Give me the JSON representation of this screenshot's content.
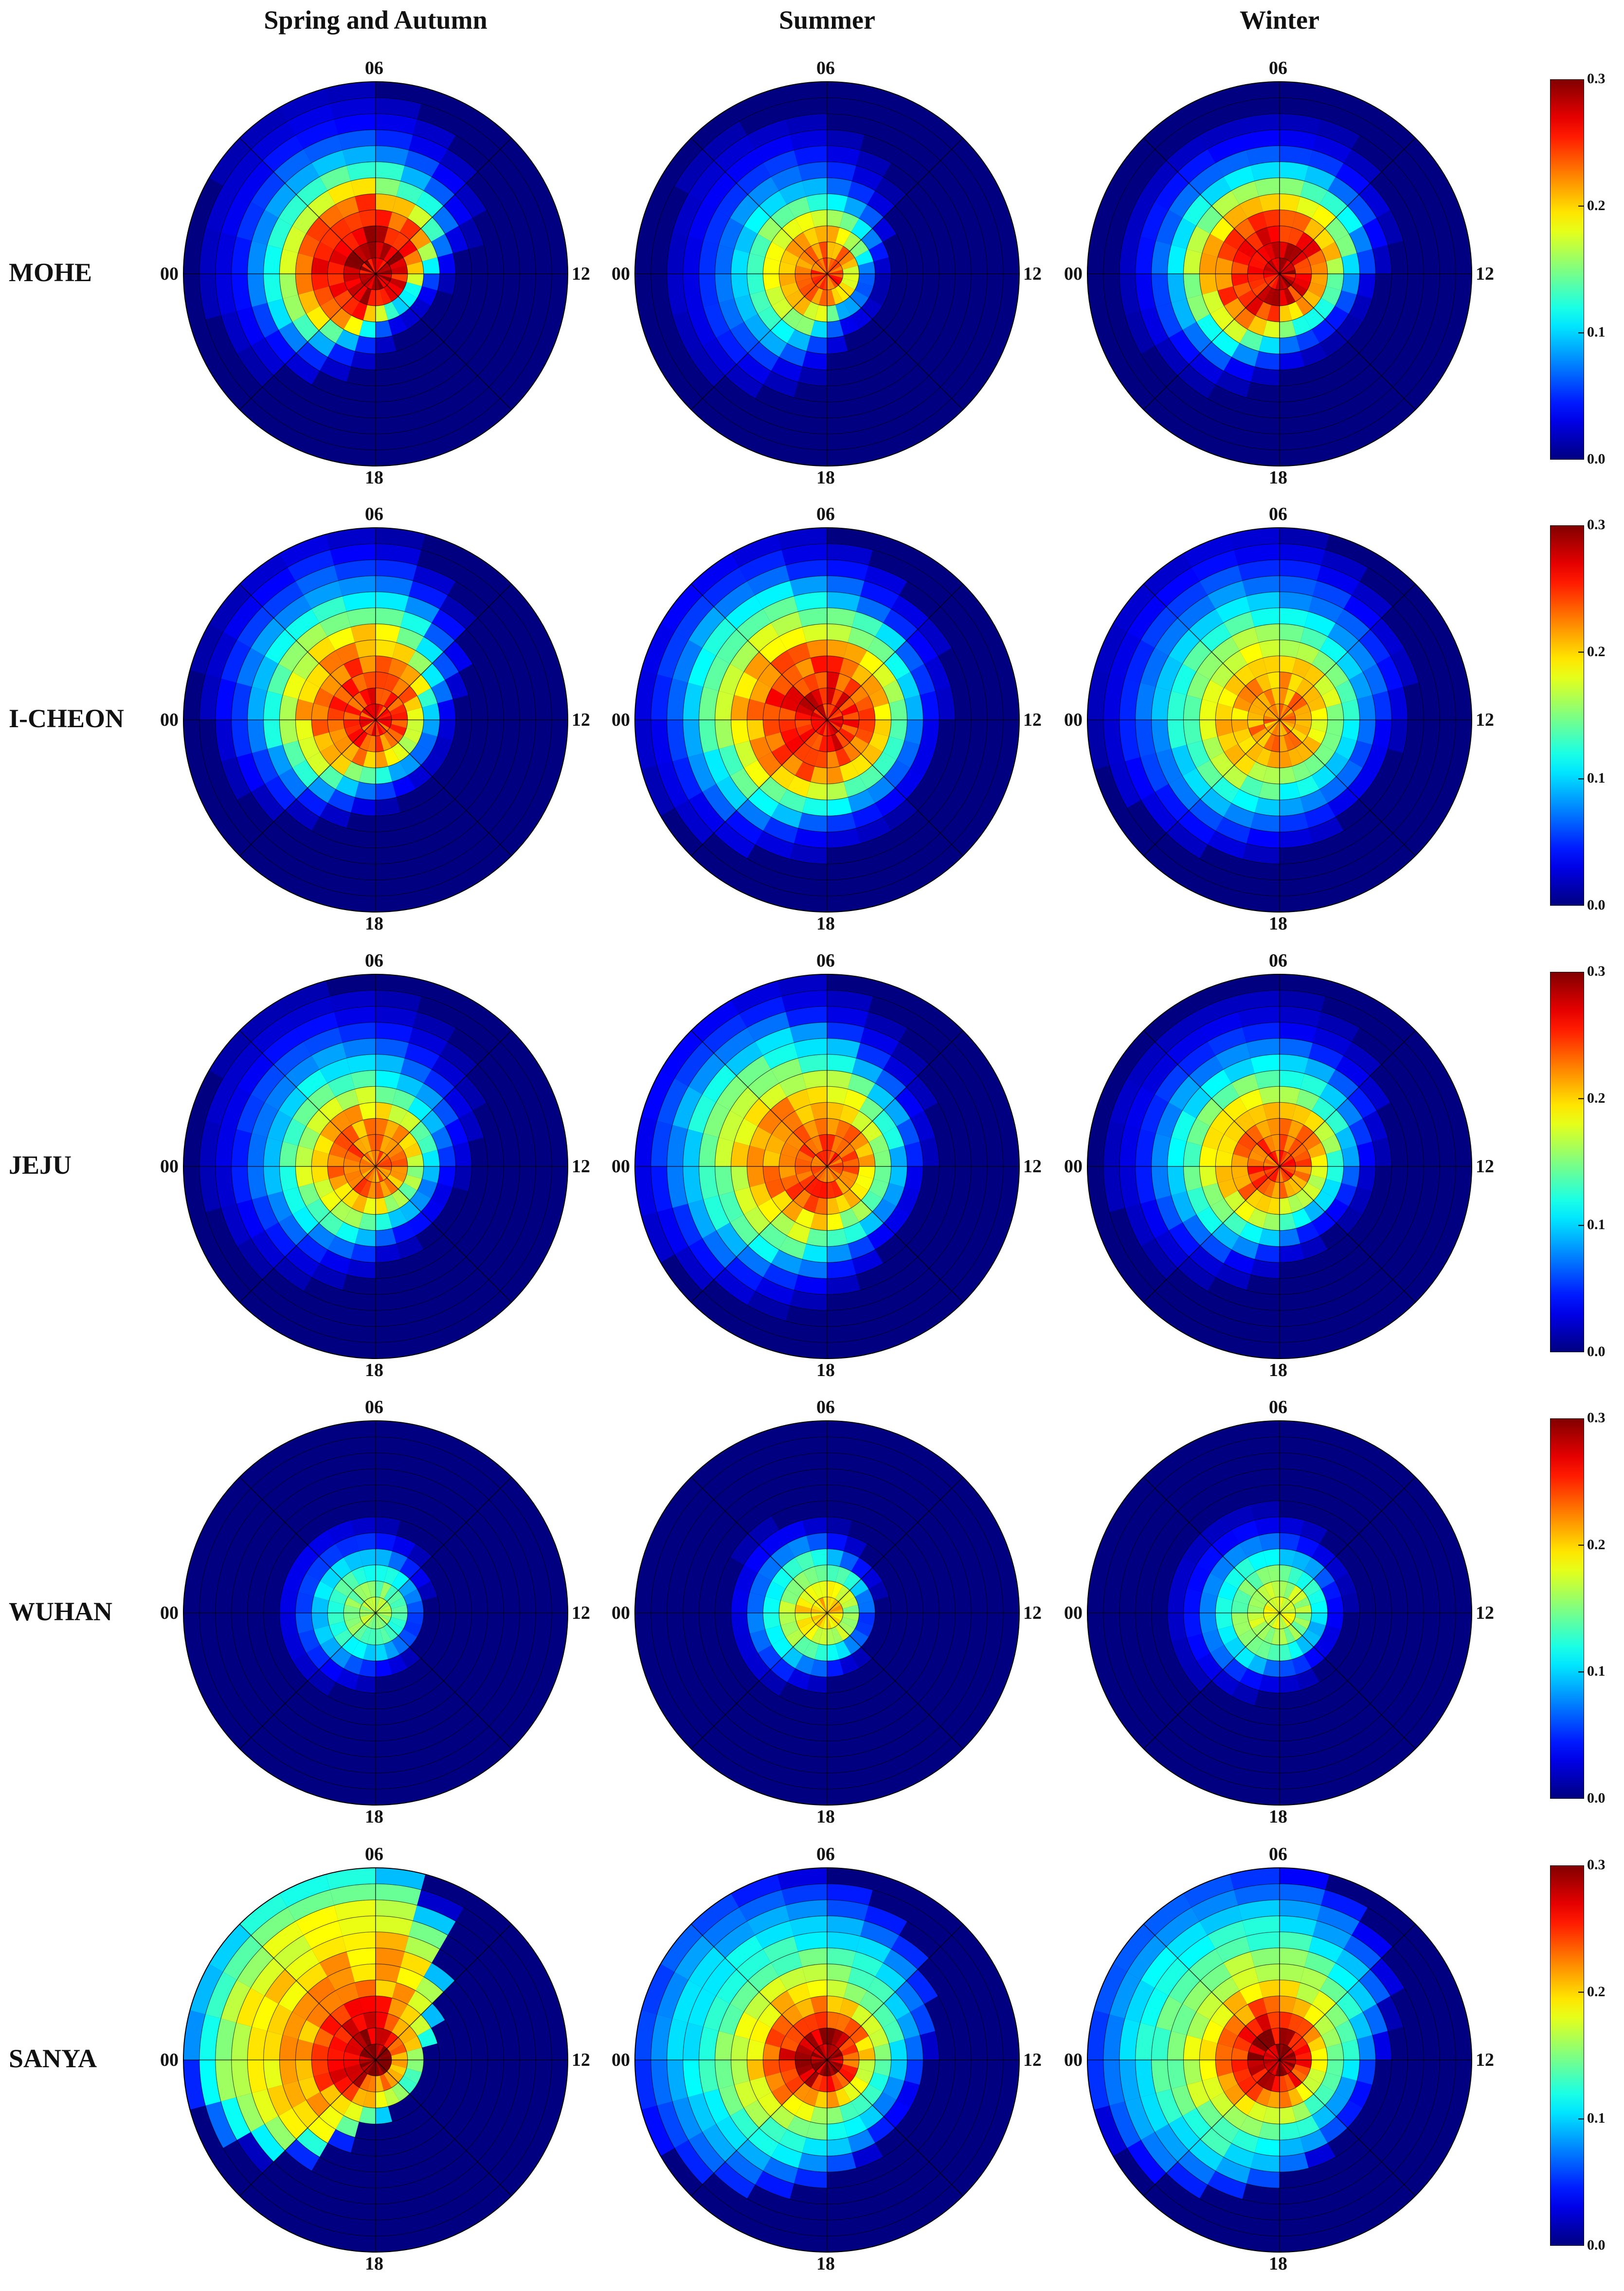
{
  "chart_data": {
    "type": "heatmap",
    "columns": [
      "Spring and Autumn",
      "Summer",
      "Winter"
    ],
    "rows": [
      "MOHE",
      "I-CHEON",
      "JEJU",
      "WUHAN",
      "SANYA"
    ],
    "angle_labels": {
      "top": "06",
      "right": "12",
      "bottom": "18",
      "left": "00"
    },
    "colorbar": {
      "min": 0.0,
      "max": 0.3,
      "ticks": [
        "0.0",
        "0.1",
        "0.2",
        "0.3"
      ]
    },
    "panels": [
      [
        {
          "core": [
            0.28,
            0.28,
            0.27,
            0.26,
            0.22,
            0.17,
            0.12,
            0.08,
            0.05,
            0.03,
            0.02,
            0.01
          ],
          "dir": [
            1.0,
            1.05,
            1.1,
            0.95,
            0.75,
            0.5,
            0.35,
            0.3,
            0.35,
            0.55,
            0.8,
            0.95
          ]
        },
        {
          "core": [
            0.24,
            0.23,
            0.21,
            0.18,
            0.14,
            0.1,
            0.07,
            0.05,
            0.03,
            0.02,
            0.01,
            0.01
          ],
          "dir": [
            1.0,
            1.05,
            1.0,
            0.8,
            0.55,
            0.35,
            0.3,
            0.35,
            0.4,
            0.7,
            0.95,
            1.0
          ]
        },
        {
          "core": [
            0.27,
            0.27,
            0.26,
            0.24,
            0.2,
            0.16,
            0.11,
            0.07,
            0.04,
            0.02,
            0.01,
            0.01
          ],
          "dir": [
            1.0,
            1.0,
            1.0,
            0.95,
            0.85,
            0.7,
            0.55,
            0.5,
            0.55,
            0.7,
            0.85,
            0.95
          ]
        }
      ],
      [
        {
          "core": [
            0.25,
            0.25,
            0.24,
            0.23,
            0.21,
            0.17,
            0.13,
            0.09,
            0.06,
            0.04,
            0.02,
            0.01
          ],
          "dir": [
            1.0,
            1.1,
            1.15,
            1.0,
            0.7,
            0.45,
            0.4,
            0.4,
            0.45,
            0.55,
            0.75,
            0.9
          ]
        },
        {
          "core": [
            0.26,
            0.26,
            0.25,
            0.24,
            0.22,
            0.19,
            0.15,
            0.12,
            0.08,
            0.05,
            0.03,
            0.02
          ],
          "dir": [
            1.1,
            1.15,
            1.05,
            0.9,
            0.75,
            0.65,
            0.6,
            0.6,
            0.65,
            0.75,
            0.9,
            1.0
          ]
        },
        {
          "core": [
            0.22,
            0.22,
            0.21,
            0.2,
            0.18,
            0.15,
            0.12,
            0.09,
            0.07,
            0.05,
            0.03,
            0.02
          ],
          "dir": [
            1.0,
            1.05,
            1.05,
            0.95,
            0.8,
            0.7,
            0.6,
            0.6,
            0.65,
            0.75,
            0.85,
            0.95
          ]
        }
      ],
      [
        {
          "core": [
            0.23,
            0.23,
            0.22,
            0.2,
            0.17,
            0.13,
            0.1,
            0.07,
            0.05,
            0.03,
            0.02,
            0.01
          ],
          "dir": [
            1.0,
            1.05,
            1.05,
            0.9,
            0.7,
            0.55,
            0.45,
            0.45,
            0.5,
            0.65,
            0.8,
            0.95
          ]
        },
        {
          "core": [
            0.24,
            0.24,
            0.23,
            0.22,
            0.2,
            0.17,
            0.14,
            0.11,
            0.08,
            0.05,
            0.03,
            0.02
          ],
          "dir": [
            1.15,
            1.15,
            1.05,
            0.85,
            0.65,
            0.55,
            0.5,
            0.5,
            0.6,
            0.75,
            0.9,
            1.05
          ]
        },
        {
          "core": [
            0.24,
            0.24,
            0.23,
            0.21,
            0.18,
            0.14,
            0.11,
            0.08,
            0.05,
            0.03,
            0.02,
            0.01
          ],
          "dir": [
            1.0,
            1.0,
            1.0,
            0.9,
            0.75,
            0.6,
            0.5,
            0.45,
            0.5,
            0.65,
            0.8,
            0.95
          ]
        }
      ],
      [
        {
          "core": [
            0.16,
            0.15,
            0.13,
            0.1,
            0.06,
            0.03,
            0.01,
            0.0,
            0.0,
            0.0,
            0.0,
            0.0
          ],
          "dir": [
            1.0,
            1.0,
            0.95,
            0.85,
            0.65,
            0.5,
            0.45,
            0.5,
            0.6,
            0.75,
            0.9,
            1.0
          ]
        },
        {
          "core": [
            0.2,
            0.19,
            0.16,
            0.12,
            0.07,
            0.03,
            0.01,
            0.0,
            0.0,
            0.0,
            0.0,
            0.0
          ],
          "dir": [
            1.0,
            1.05,
            1.0,
            0.8,
            0.6,
            0.5,
            0.45,
            0.5,
            0.6,
            0.75,
            0.9,
            1.0
          ]
        },
        {
          "core": [
            0.18,
            0.17,
            0.15,
            0.12,
            0.08,
            0.04,
            0.02,
            0.01,
            0.0,
            0.0,
            0.0,
            0.0
          ],
          "dir": [
            1.0,
            1.0,
            0.95,
            0.85,
            0.7,
            0.6,
            0.55,
            0.55,
            0.65,
            0.75,
            0.9,
            1.0
          ]
        }
      ],
      [
        {
          "core": [
            0.3,
            0.28,
            0.26,
            0.24,
            0.22,
            0.21,
            0.2,
            0.19,
            0.18,
            0.16,
            0.13,
            0.09
          ],
          "dir": [
            1.0,
            1.05,
            1.1,
            1.0,
            0.4,
            0.25,
            0.2,
            0.2,
            0.25,
            0.35,
            0.7,
            0.95
          ]
        },
        {
          "core": [
            0.29,
            0.28,
            0.25,
            0.22,
            0.19,
            0.16,
            0.14,
            0.12,
            0.1,
            0.08,
            0.06,
            0.04
          ],
          "dir": [
            1.1,
            1.1,
            1.0,
            0.9,
            0.7,
            0.55,
            0.45,
            0.45,
            0.55,
            0.7,
            0.9,
            1.05
          ]
        },
        {
          "core": [
            0.29,
            0.28,
            0.25,
            0.22,
            0.19,
            0.17,
            0.15,
            0.13,
            0.11,
            0.09,
            0.07,
            0.05
          ],
          "dir": [
            1.05,
            1.1,
            1.05,
            0.95,
            0.75,
            0.55,
            0.45,
            0.45,
            0.55,
            0.7,
            0.85,
            1.0
          ]
        }
      ]
    ]
  }
}
